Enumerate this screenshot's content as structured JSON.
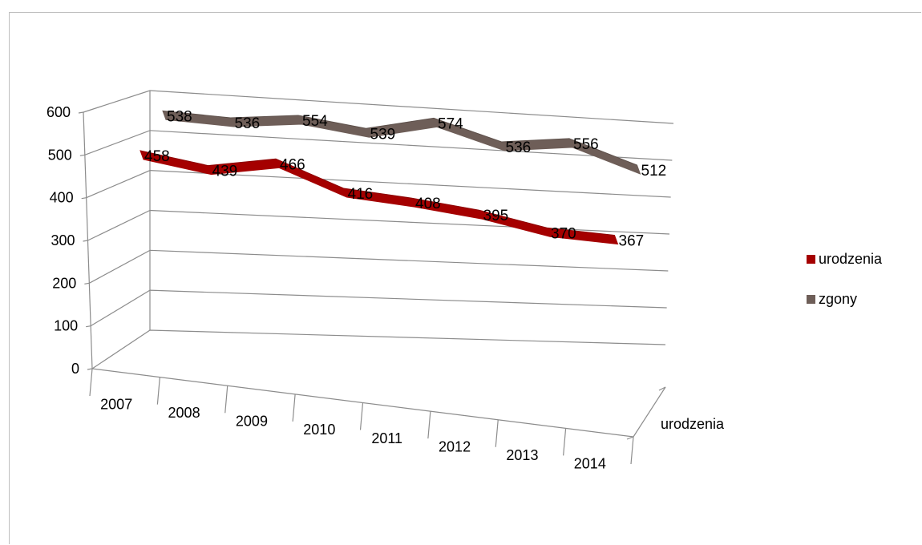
{
  "chart_data": {
    "type": "line",
    "style": "3d-line",
    "categories": [
      "2007",
      "2008",
      "2009",
      "2010",
      "2011",
      "2012",
      "2013",
      "2014"
    ],
    "series": [
      {
        "name": "urodzenia",
        "values": [
          458,
          439,
          466,
          416,
          408,
          395,
          370,
          367
        ],
        "color": "#a50000"
      },
      {
        "name": "zgony",
        "values": [
          538,
          536,
          554,
          539,
          574,
          536,
          556,
          512
        ],
        "color": "#6e5e58"
      }
    ],
    "ylim": [
      0,
      600
    ],
    "yticks": [
      "0",
      "100",
      "200",
      "300",
      "400",
      "500",
      "600"
    ],
    "depth_axis_label": "urodzenia",
    "grid": true,
    "legend": "right"
  }
}
